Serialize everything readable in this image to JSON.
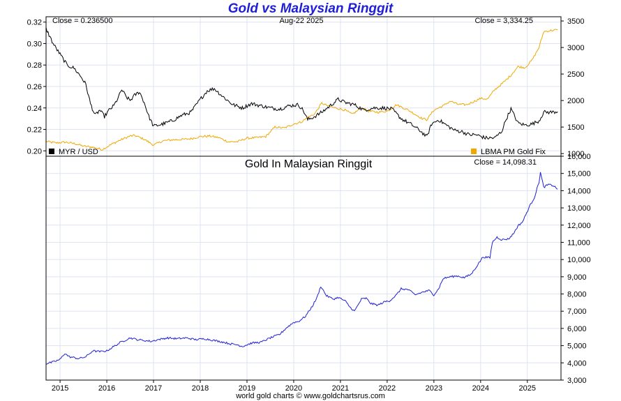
{
  "page": {
    "title": "Gold vs Malaysian Ringgit",
    "footer": "world gold charts © www.goldchartsrus.com"
  },
  "chart_data": [
    {
      "type": "line",
      "title": "",
      "header": {
        "left": "Close = 0.236500",
        "center": "Aug-22  2025",
        "right": "Close = 3,334.25"
      },
      "x_ticks": [
        "2015",
        "2016",
        "2017",
        "2018",
        "2019",
        "2020",
        "2021",
        "2022",
        "2023",
        "2024",
        "2025"
      ],
      "x_range": [
        2014.7,
        2025.72
      ],
      "left_axis": {
        "range": [
          0.195,
          0.325
        ],
        "ticks": [
          "0.20",
          "0.22",
          "0.24",
          "0.26",
          "0.28",
          "0.30",
          "0.32"
        ]
      },
      "right_axis": {
        "range": [
          950,
          3580
        ],
        "ticks": [
          "1000",
          "1500",
          "2000",
          "2500",
          "3000",
          "3500"
        ]
      },
      "grid": true,
      "legend_placement": "bottom-left and bottom-right",
      "series": [
        {
          "name": "MYR / USD",
          "axis": "left",
          "color": "#000000",
          "points": [
            [
              2014.7,
              0.314
            ],
            [
              2014.85,
              0.3
            ],
            [
              2015.0,
              0.29
            ],
            [
              2015.15,
              0.28
            ],
            [
              2015.3,
              0.277
            ],
            [
              2015.45,
              0.269
            ],
            [
              2015.55,
              0.262
            ],
            [
              2015.65,
              0.244
            ],
            [
              2015.75,
              0.233
            ],
            [
              2015.85,
              0.238
            ],
            [
              2015.95,
              0.232
            ],
            [
              2016.05,
              0.238
            ],
            [
              2016.15,
              0.242
            ],
            [
              2016.25,
              0.25
            ],
            [
              2016.32,
              0.257
            ],
            [
              2016.42,
              0.25
            ],
            [
              2016.5,
              0.247
            ],
            [
              2016.6,
              0.252
            ],
            [
              2016.7,
              0.255
            ],
            [
              2016.8,
              0.245
            ],
            [
              2016.9,
              0.232
            ],
            [
              2017.0,
              0.223
            ],
            [
              2017.2,
              0.225
            ],
            [
              2017.4,
              0.228
            ],
            [
              2017.6,
              0.233
            ],
            [
              2017.8,
              0.236
            ],
            [
              2018.0,
              0.248
            ],
            [
              2018.15,
              0.256
            ],
            [
              2018.3,
              0.258
            ],
            [
              2018.5,
              0.25
            ],
            [
              2018.7,
              0.243
            ],
            [
              2018.9,
              0.24
            ],
            [
              2019.1,
              0.244
            ],
            [
              2019.3,
              0.242
            ],
            [
              2019.5,
              0.24
            ],
            [
              2019.7,
              0.239
            ],
            [
              2019.9,
              0.242
            ],
            [
              2020.1,
              0.243
            ],
            [
              2020.2,
              0.238
            ],
            [
              2020.3,
              0.229
            ],
            [
              2020.45,
              0.232
            ],
            [
              2020.6,
              0.236
            ],
            [
              2020.75,
              0.241
            ],
            [
              2020.95,
              0.248
            ],
            [
              2021.1,
              0.245
            ],
            [
              2021.3,
              0.243
            ],
            [
              2021.5,
              0.238
            ],
            [
              2021.7,
              0.24
            ],
            [
              2021.9,
              0.24
            ],
            [
              2022.1,
              0.239
            ],
            [
              2022.3,
              0.23
            ],
            [
              2022.5,
              0.225
            ],
            [
              2022.7,
              0.219
            ],
            [
              2022.85,
              0.213
            ],
            [
              2022.95,
              0.225
            ],
            [
              2023.1,
              0.229
            ],
            [
              2023.3,
              0.223
            ],
            [
              2023.45,
              0.219
            ],
            [
              2023.6,
              0.218
            ],
            [
              2023.75,
              0.215
            ],
            [
              2023.9,
              0.215
            ],
            [
              2024.1,
              0.212
            ],
            [
              2024.3,
              0.212
            ],
            [
              2024.45,
              0.218
            ],
            [
              2024.55,
              0.23
            ],
            [
              2024.65,
              0.239
            ],
            [
              2024.8,
              0.226
            ],
            [
              2024.95,
              0.224
            ],
            [
              2025.1,
              0.225
            ],
            [
              2025.25,
              0.228
            ],
            [
              2025.35,
              0.236
            ],
            [
              2025.5,
              0.236
            ],
            [
              2025.65,
              0.2365
            ]
          ]
        },
        {
          "name": "LBMA PM Gold Fix",
          "axis": "right",
          "color": "#f0a800",
          "points": [
            [
              2014.7,
              1230
            ],
            [
              2014.9,
              1200
            ],
            [
              2015.1,
              1215
            ],
            [
              2015.3,
              1190
            ],
            [
              2015.5,
              1140
            ],
            [
              2015.7,
              1120
            ],
            [
              2015.9,
              1075
            ],
            [
              2016.1,
              1175
            ],
            [
              2016.3,
              1260
            ],
            [
              2016.5,
              1330
            ],
            [
              2016.6,
              1340
            ],
            [
              2016.8,
              1270
            ],
            [
              2017.0,
              1160
            ],
            [
              2017.2,
              1240
            ],
            [
              2017.4,
              1260
            ],
            [
              2017.6,
              1265
            ],
            [
              2017.8,
              1280
            ],
            [
              2018.0,
              1320
            ],
            [
              2018.2,
              1330
            ],
            [
              2018.4,
              1300
            ],
            [
              2018.6,
              1220
            ],
            [
              2018.8,
              1225
            ],
            [
              2019.0,
              1290
            ],
            [
              2019.2,
              1300
            ],
            [
              2019.4,
              1320
            ],
            [
              2019.6,
              1500
            ],
            [
              2019.8,
              1480
            ],
            [
              2020.0,
              1560
            ],
            [
              2020.15,
              1590
            ],
            [
              2020.3,
              1680
            ],
            [
              2020.45,
              1750
            ],
            [
              2020.6,
              1950
            ],
            [
              2020.75,
              1890
            ],
            [
              2020.9,
              1860
            ],
            [
              2021.1,
              1820
            ],
            [
              2021.25,
              1740
            ],
            [
              2021.45,
              1860
            ],
            [
              2021.6,
              1800
            ],
            [
              2021.8,
              1780
            ],
            [
              2022.0,
              1800
            ],
            [
              2022.2,
              1920
            ],
            [
              2022.3,
              1880
            ],
            [
              2022.45,
              1820
            ],
            [
              2022.6,
              1740
            ],
            [
              2022.75,
              1660
            ],
            [
              2022.85,
              1640
            ],
            [
              2023.0,
              1820
            ],
            [
              2023.2,
              1900
            ],
            [
              2023.35,
              1990
            ],
            [
              2023.5,
              1930
            ],
            [
              2023.7,
              1920
            ],
            [
              2023.85,
              1980
            ],
            [
              2024.0,
              2040
            ],
            [
              2024.15,
              2030
            ],
            [
              2024.3,
              2200
            ],
            [
              2024.5,
              2350
            ],
            [
              2024.65,
              2480
            ],
            [
              2024.8,
              2640
            ],
            [
              2024.95,
              2620
            ],
            [
              2025.1,
              2760
            ],
            [
              2025.25,
              3000
            ],
            [
              2025.35,
              3300
            ],
            [
              2025.5,
              3320
            ],
            [
              2025.65,
              3334.25
            ]
          ]
        }
      ]
    },
    {
      "type": "line",
      "title": "Gold In Malaysian Ringgit",
      "header": {
        "right": "Close = 14,098.31"
      },
      "x_ticks": [
        "2015",
        "2016",
        "2017",
        "2018",
        "2019",
        "2020",
        "2021",
        "2022",
        "2023",
        "2024",
        "2025"
      ],
      "x_range": [
        2014.7,
        2025.72
      ],
      "right_axis": {
        "range": [
          3000,
          16000
        ],
        "ticks": [
          "3,000",
          "4,000",
          "5,000",
          "6,000",
          "7,000",
          "8,000",
          "9,000",
          "10,000",
          "11,000",
          "12,000",
          "13,000",
          "14,000",
          "15,000",
          "16,000"
        ]
      },
      "grid": true,
      "series": [
        {
          "name": "Gold In Malaysian Ringgit",
          "color": "#1f1fd6",
          "points": [
            [
              2014.7,
              3950
            ],
            [
              2014.85,
              4050
            ],
            [
              2015.0,
              4200
            ],
            [
              2015.1,
              4550
            ],
            [
              2015.2,
              4350
            ],
            [
              2015.4,
              4250
            ],
            [
              2015.55,
              4350
            ],
            [
              2015.7,
              4700
            ],
            [
              2015.85,
              4650
            ],
            [
              2016.0,
              4700
            ],
            [
              2016.15,
              4950
            ],
            [
              2016.3,
              5200
            ],
            [
              2016.5,
              5450
            ],
            [
              2016.65,
              5350
            ],
            [
              2016.8,
              5300
            ],
            [
              2016.95,
              5250
            ],
            [
              2017.1,
              5350
            ],
            [
              2017.3,
              5450
            ],
            [
              2017.5,
              5400
            ],
            [
              2017.7,
              5450
            ],
            [
              2017.9,
              5350
            ],
            [
              2018.1,
              5400
            ],
            [
              2018.3,
              5300
            ],
            [
              2018.5,
              5200
            ],
            [
              2018.65,
              5100
            ],
            [
              2018.8,
              5050
            ],
            [
              2018.9,
              4950
            ],
            [
              2019.1,
              5150
            ],
            [
              2019.3,
              5200
            ],
            [
              2019.5,
              5450
            ],
            [
              2019.7,
              5650
            ],
            [
              2019.85,
              6050
            ],
            [
              2020.0,
              6350
            ],
            [
              2020.1,
              6400
            ],
            [
              2020.25,
              6700
            ],
            [
              2020.4,
              7300
            ],
            [
              2020.5,
              7800
            ],
            [
              2020.58,
              8450
            ],
            [
              2020.7,
              7900
            ],
            [
              2020.85,
              7700
            ],
            [
              2020.95,
              7800
            ],
            [
              2021.1,
              7600
            ],
            [
              2021.2,
              7250
            ],
            [
              2021.3,
              7000
            ],
            [
              2021.45,
              7700
            ],
            [
              2021.55,
              7750
            ],
            [
              2021.65,
              7450
            ],
            [
              2021.8,
              7350
            ],
            [
              2021.95,
              7550
            ],
            [
              2022.05,
              7600
            ],
            [
              2022.2,
              7950
            ],
            [
              2022.3,
              8300
            ],
            [
              2022.45,
              8250
            ],
            [
              2022.6,
              7950
            ],
            [
              2022.75,
              8100
            ],
            [
              2022.9,
              8200
            ],
            [
              2023.0,
              7950
            ],
            [
              2023.1,
              8300
            ],
            [
              2023.2,
              8900
            ],
            [
              2023.35,
              9000
            ],
            [
              2023.5,
              9050
            ],
            [
              2023.65,
              8950
            ],
            [
              2023.8,
              9150
            ],
            [
              2023.9,
              9550
            ],
            [
              2024.05,
              10150
            ],
            [
              2024.2,
              10100
            ],
            [
              2024.25,
              11000
            ],
            [
              2024.35,
              11300
            ],
            [
              2024.45,
              11150
            ],
            [
              2024.6,
              11200
            ],
            [
              2024.7,
              11500
            ],
            [
              2024.8,
              11950
            ],
            [
              2024.9,
              12200
            ],
            [
              2025.05,
              13100
            ],
            [
              2025.15,
              13600
            ],
            [
              2025.25,
              14500
            ],
            [
              2025.28,
              15050
            ],
            [
              2025.35,
              14200
            ],
            [
              2025.45,
              14350
            ],
            [
              2025.55,
              14300
            ],
            [
              2025.65,
              14098.31
            ]
          ]
        }
      ]
    }
  ]
}
